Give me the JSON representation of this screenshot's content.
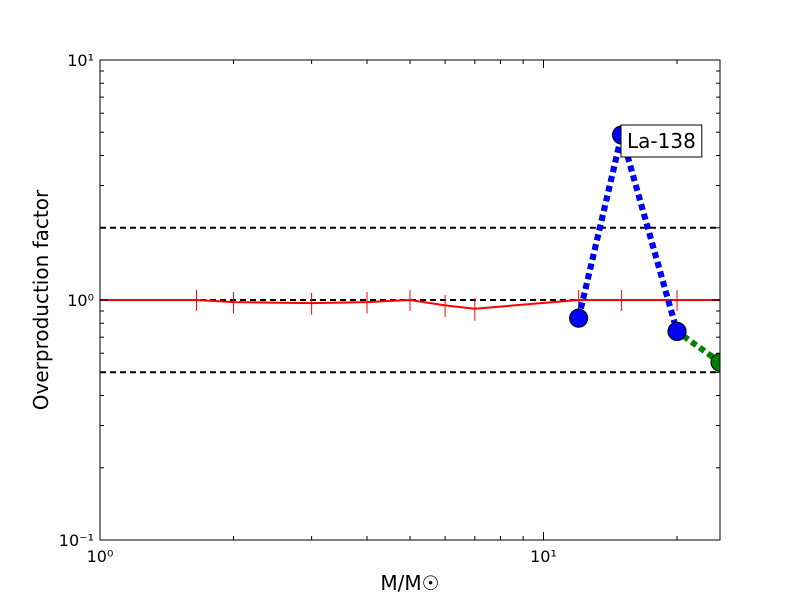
{
  "chart_data": {
    "type": "line",
    "xlabel": "M/M☉",
    "ylabel": "Overproduction factor",
    "annotation": "La-138",
    "xscale": "log",
    "yscale": "log",
    "xlim": [
      1,
      25
    ],
    "ylim": [
      0.1,
      10
    ],
    "xticks": [
      {
        "value": 1,
        "label": "10⁰"
      },
      {
        "value": 10,
        "label": "10¹"
      }
    ],
    "yticks": [
      {
        "value": 0.1,
        "label": "10⁻¹"
      },
      {
        "value": 1,
        "label": "10⁰"
      },
      {
        "value": 10,
        "label": "10¹"
      }
    ],
    "xminorticks": [
      2,
      3,
      4,
      5,
      6,
      7,
      8,
      9,
      20
    ],
    "yminorticks": [
      0.2,
      0.3,
      0.4,
      0.5,
      0.6,
      0.7,
      0.8,
      0.9,
      2,
      3,
      4,
      5,
      6,
      7,
      8,
      9
    ],
    "hlines": [
      0.5,
      1,
      2
    ],
    "series": [
      {
        "color": "#ff0000",
        "style": "solid",
        "marker": false,
        "x": [
          1,
          1.65,
          2,
          3,
          4,
          5,
          6,
          7,
          12,
          15,
          20,
          25
        ],
        "values": [
          1.0,
          1.0,
          0.98,
          0.97,
          0.98,
          1.0,
          0.95,
          0.92,
          1.0,
          1.0,
          1.0,
          1.0
        ],
        "errors": [
          0.1,
          0.1,
          0.1,
          0.1,
          0.1,
          0.1,
          0.1,
          0.1,
          0.1,
          0.1,
          0.1,
          0.1
        ]
      },
      {
        "color": "#008000",
        "style": "dotted",
        "marker": true,
        "x": [
          12,
          15,
          20,
          25
        ],
        "values": [
          0.84,
          4.87,
          0.74,
          0.55
        ]
      },
      {
        "color": "#0000ff",
        "style": "dotted",
        "marker": true,
        "x": [
          12,
          15,
          20
        ],
        "values": [
          0.84,
          4.87,
          0.74
        ]
      }
    ]
  }
}
